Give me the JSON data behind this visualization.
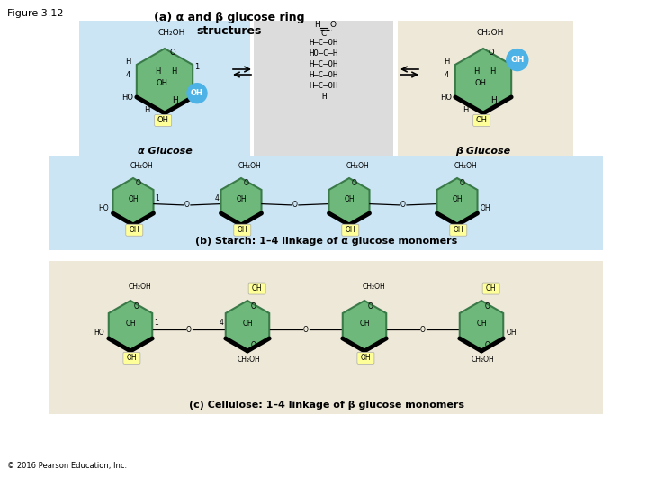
{
  "title": "Figure 3.12",
  "fig_width": 7.2,
  "fig_height": 5.4,
  "dpi": 100,
  "bg_color": "#ffffff",
  "section_a_blue_bg": "#cce5f5",
  "section_a_tan_bg": "#ede8d8",
  "gray_box_bg": "#dcdcdc",
  "section_b_bg": "#cce5f5",
  "section_c_bg": "#ede8d8",
  "ring_color": "#6db87a",
  "ring_edge_color": "#3a7a48",
  "oh_yellow_bg": "#ffff99",
  "oh_blue_bg": "#4db3e6",
  "oh_blue_text": "#ffffff",
  "label_alpha_glucose": "α Glucose",
  "label_beta_glucose": "β Glucose",
  "label_b": "(b) Starch: 1–4 linkage of α glucose monomers",
  "label_c": "(c) Cellulose: 1–4 linkage of β glucose monomers",
  "label_a_title": "(a) α and β glucose ring\nstructures",
  "copyright": "© 2016 Pearson Education, Inc."
}
